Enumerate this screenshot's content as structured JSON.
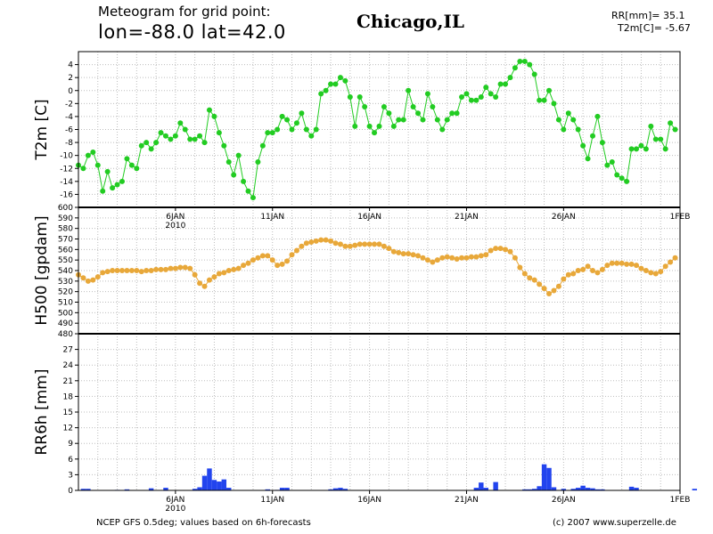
{
  "header": {
    "line1": "Meteogram for grid point:",
    "line2": "lon=-88.0  lat=42.0",
    "location": "Chicago,IL",
    "rr_readout": "RR[mm]= 35.1",
    "t2m_readout": "T2m[C]= -5.67"
  },
  "footer": {
    "source": "NCEP GFS 0.5deg; values based on 6h-forecasts",
    "copyright": "(c) 2007 www.superzelle.de"
  },
  "x_axis": {
    "day_start": 1,
    "day_end": 32,
    "ticks": [
      {
        "day": 6,
        "label": "6JAN",
        "sub": "2010"
      },
      {
        "day": 11,
        "label": "11JAN",
        "sub": ""
      },
      {
        "day": 16,
        "label": "16JAN",
        "sub": ""
      },
      {
        "day": 21,
        "label": "21JAN",
        "sub": ""
      },
      {
        "day": 26,
        "label": "26JAN",
        "sub": ""
      },
      {
        "day": 32,
        "label": "1FEB",
        "sub": ""
      }
    ]
  },
  "chart_data": [
    {
      "type": "line",
      "ylabel": "T2m [C]",
      "ylim": [
        -18,
        6
      ],
      "yticks": [
        -16,
        -14,
        -12,
        -10,
        -8,
        -6,
        -4,
        -2,
        0,
        2,
        4
      ],
      "color": "#22cc22",
      "x_start_day": 1.0,
      "x_step_days": 0.25,
      "values": [
        -11.5,
        -12,
        -10,
        -9.5,
        -11.5,
        -15.5,
        -12.5,
        -15,
        -14.5,
        -14,
        -10.5,
        -11.5,
        -12,
        -8.5,
        -8,
        -9,
        -8,
        -6.5,
        -7,
        -7.5,
        -7,
        -5,
        -6,
        -7.5,
        -7.5,
        -7,
        -8,
        -3,
        -4,
        -6.5,
        -8.5,
        -11,
        -13,
        -10,
        -14,
        -15.5,
        -16.5,
        -11,
        -8.5,
        -6.5,
        -6.5,
        -6,
        -4,
        -4.5,
        -6,
        -5,
        -3.5,
        -6,
        -7,
        -6,
        -0.5,
        0,
        1,
        1,
        2,
        1.5,
        -1,
        -5.5,
        -1,
        -2.5,
        -5.5,
        -6.5,
        -5.5,
        -2.5,
        -3.5,
        -5.5,
        -4.5,
        -4.5,
        0,
        -2.5,
        -3.5,
        -4.5,
        -0.5,
        -2.5,
        -4.5,
        -6,
        -4.5,
        -3.5,
        -3.5,
        -1,
        -0.5,
        -1.5,
        -1.5,
        -1,
        0.5,
        -0.5,
        -1,
        1,
        1,
        2,
        3.5,
        4.5,
        4.5,
        4,
        2.5,
        -1.5,
        -1.5,
        0,
        -2,
        -4.5,
        -6,
        -3.5,
        -4.5,
        -6,
        -8.5,
        -10.5,
        -7,
        -4,
        -8,
        -11.5,
        -11,
        -13,
        -13.5,
        -14,
        -9,
        -9,
        -8.5,
        -9,
        -5.5,
        -7.5,
        -7.5,
        -9,
        -5,
        -6
      ]
    },
    {
      "type": "line",
      "ylabel": "H500 [gpdam]",
      "ylim": [
        480,
        600
      ],
      "yticks": [
        480,
        490,
        500,
        510,
        520,
        530,
        540,
        550,
        560,
        570,
        580,
        590,
        600
      ],
      "color": "#e8a83a",
      "x_start_day": 1.0,
      "x_step_days": 0.25,
      "values": [
        536,
        533,
        530,
        531,
        534,
        538,
        539,
        540,
        540,
        540,
        540,
        540,
        540,
        539,
        540,
        540,
        541,
        541,
        541,
        542,
        542,
        543,
        543,
        542,
        536,
        528,
        525,
        531,
        534,
        537,
        538,
        540,
        541,
        542,
        545,
        547,
        550,
        552,
        554,
        554,
        550,
        545,
        546,
        549,
        555,
        559,
        563,
        566,
        567,
        568,
        569,
        569,
        568,
        566,
        565,
        563,
        563,
        564,
        565,
        565,
        565,
        565,
        565,
        563,
        561,
        558,
        557,
        556,
        556,
        555,
        554,
        552,
        550,
        548,
        550,
        552,
        553,
        552,
        551,
        552,
        552,
        553,
        553,
        554,
        555,
        559,
        561,
        561,
        560,
        558,
        552,
        543,
        537,
        533,
        531,
        527,
        523,
        518,
        521,
        525,
        532,
        536,
        537,
        540,
        541,
        544,
        540,
        538,
        541,
        545,
        547,
        547,
        547,
        546,
        546,
        545,
        542,
        540,
        538,
        537,
        539,
        544,
        548,
        552
      ]
    },
    {
      "type": "bar",
      "ylabel": "RR6h [mm]",
      "ylim": [
        0,
        30
      ],
      "yticks": [
        0,
        3,
        6,
        9,
        12,
        15,
        18,
        21,
        24,
        27
      ],
      "color": "#2244ee",
      "x_start_day": 1.0,
      "x_step_days": 0.25,
      "values": [
        0,
        0.3,
        0.3,
        0,
        0,
        0,
        0,
        0,
        0.1,
        0,
        0.2,
        0,
        0,
        0,
        0,
        0.4,
        0,
        0,
        0.5,
        0,
        0,
        0,
        0,
        0,
        0.3,
        0.6,
        2.8,
        4.2,
        2,
        1.7,
        2.1,
        0.5,
        0,
        0,
        0,
        0,
        0,
        0,
        0,
        0.2,
        0,
        0.1,
        0.5,
        0.5,
        0,
        0,
        0,
        0,
        0,
        0,
        0,
        0,
        0.2,
        0.4,
        0.5,
        0.3,
        0,
        0,
        0,
        0,
        0,
        0,
        0,
        0,
        0,
        0,
        0,
        0,
        0,
        0,
        0,
        0,
        0,
        0,
        0,
        0,
        0,
        0,
        0,
        0,
        0,
        0,
        0.5,
        1.5,
        0.5,
        0,
        1.6,
        0,
        0,
        0,
        0,
        0,
        0.2,
        0.2,
        0.3,
        0.8,
        5,
        4.3,
        0.6,
        0,
        0.3,
        0,
        0.3,
        0.5,
        0.9,
        0.5,
        0.4,
        0.2,
        0.2,
        0,
        0,
        0,
        0,
        0,
        0.7,
        0.5,
        0,
        0,
        0,
        0,
        0,
        0,
        0,
        0,
        0,
        0,
        0,
        0.3
      ]
    }
  ]
}
